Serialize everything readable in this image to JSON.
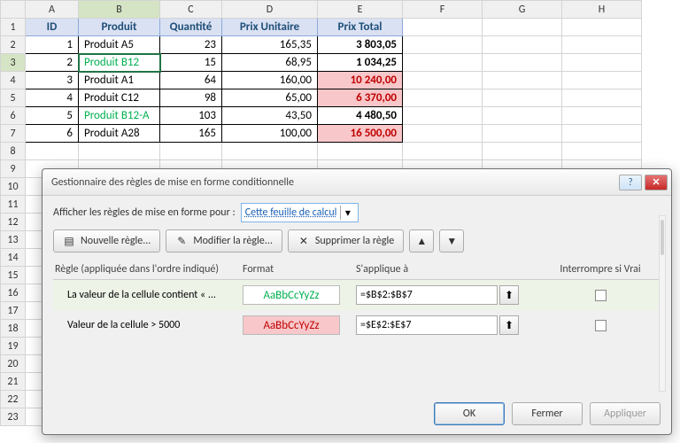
{
  "columns": [
    "A",
    "B",
    "C",
    "D",
    "E",
    "F",
    "G",
    "H"
  ],
  "rows": [
    "1",
    "2",
    "3",
    "4",
    "5",
    "6",
    "7",
    "8",
    "9",
    "10",
    "11",
    "12",
    "13",
    "14",
    "15",
    "16",
    "17",
    "18",
    "19",
    "20",
    "21",
    "22",
    "23"
  ],
  "header": {
    "id": "ID",
    "produit": "Produit",
    "quantite": "Quantité",
    "prix_unit": "Prix Unitaire",
    "prix_total": "Prix Total"
  },
  "data": [
    {
      "id": "1",
      "produit": "Produit A5",
      "qte": "23",
      "pu": "165,35",
      "pt": "3 803,05",
      "green": false,
      "red": false
    },
    {
      "id": "2",
      "produit": "Produit B12",
      "qte": "15",
      "pu": "68,95",
      "pt": "1 034,25",
      "green": true,
      "red": false
    },
    {
      "id": "3",
      "produit": "Produit A1",
      "qte": "64",
      "pu": "160,00",
      "pt": "10 240,00",
      "green": false,
      "red": true
    },
    {
      "id": "4",
      "produit": "Produit C12",
      "qte": "98",
      "pu": "65,00",
      "pt": "6 370,00",
      "green": false,
      "red": true
    },
    {
      "id": "5",
      "produit": "Produit B12-A",
      "qte": "103",
      "pu": "43,50",
      "pt": "4 480,50",
      "green": true,
      "red": false
    },
    {
      "id": "6",
      "produit": "Produit A28",
      "qte": "165",
      "pu": "100,00",
      "pt": "16 500,00",
      "green": false,
      "red": true
    }
  ],
  "dialog": {
    "title": "Gestionnaire des règles de mise en forme conditionnelle",
    "show_label": "Afficher les règles de mise en forme pour :",
    "scope": "Cette feuille de calcul",
    "btn_new": "Nouvelle règle...",
    "btn_edit": "Modifier la règle...",
    "btn_delete": "Supprimer la règle",
    "col_rule": "Règle (appliquée dans l'ordre indiqué)",
    "col_format": "Format",
    "col_range": "S'applique à",
    "col_stop": "Interrompre si Vrai",
    "preview": "AaBbCcYyZz",
    "rules": [
      {
        "text": "La valeur de la cellule contient « ...",
        "range": "=$B$2:$B$7",
        "style": "green"
      },
      {
        "text": "Valeur de la cellule > 5000",
        "range": "=$E$2:$E$7",
        "style": "red"
      }
    ],
    "ok": "OK",
    "close": "Fermer",
    "apply": "Appliquer"
  }
}
